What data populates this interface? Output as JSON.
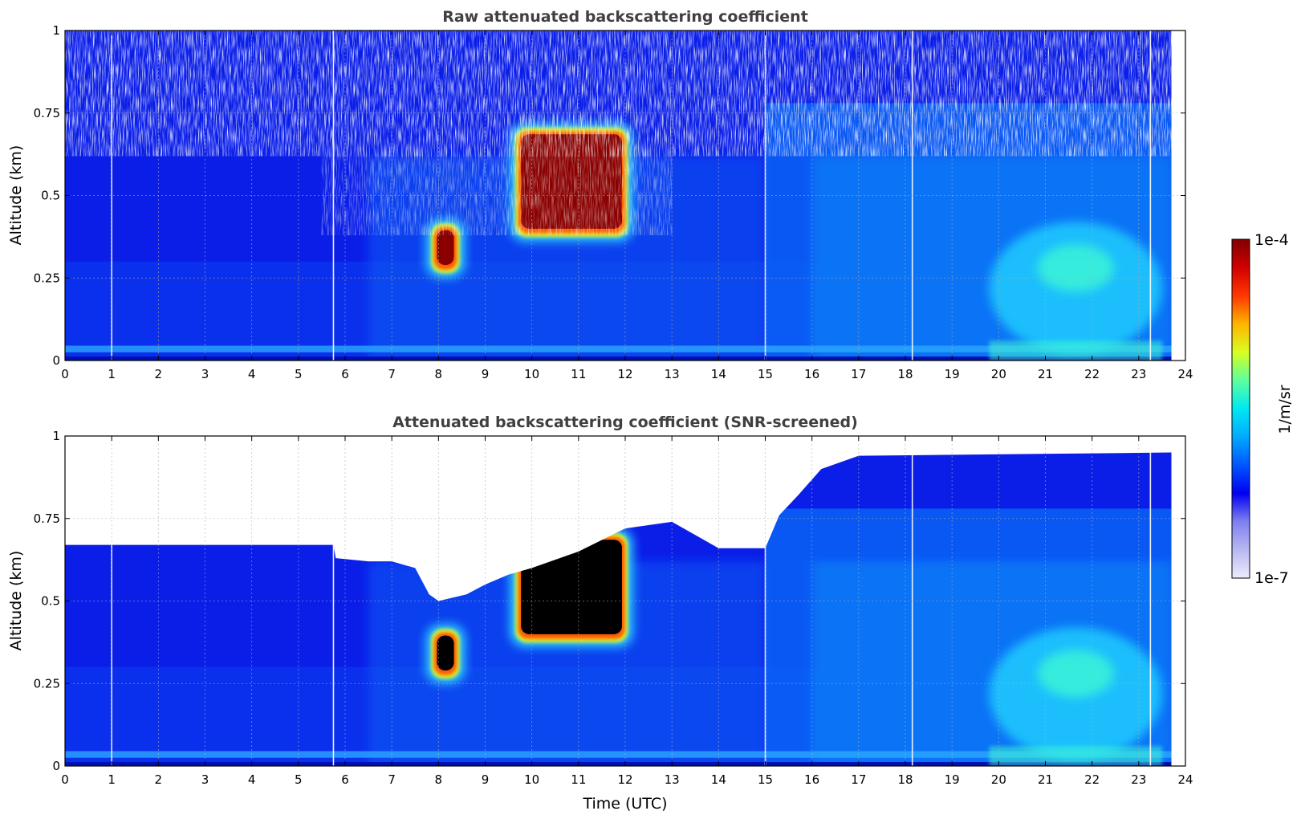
{
  "chart_data": [
    {
      "type": "heatmap",
      "title": "Raw attenuated backscattering coefficient",
      "xlabel": "",
      "ylabel": "Altitude (km)",
      "xlim": [
        0,
        24
      ],
      "ylim": [
        0,
        1
      ],
      "xticks": [
        "0",
        "1",
        "2",
        "3",
        "4",
        "5",
        "6",
        "7",
        "8",
        "9",
        "10",
        "11",
        "12",
        "13",
        "14",
        "15",
        "16",
        "17",
        "18",
        "19",
        "20",
        "21",
        "22",
        "23",
        "24"
      ],
      "yticks": [
        "0",
        "0.25",
        "0.5",
        "0.75",
        "1"
      ],
      "grid": true,
      "data_end_time": 23.7,
      "gap_times": [
        1.0,
        5.75,
        15.0,
        18.15,
        23.25
      ],
      "features": [
        {
          "kind": "cloud",
          "time_start": 7.9,
          "time_end": 8.4,
          "altitude_bottom": 0.27,
          "altitude_top": 0.41,
          "level": "high"
        },
        {
          "kind": "cloud",
          "time_start": 9.7,
          "time_end": 12.0,
          "altitude_bottom": 0.38,
          "altitude_top": 0.7,
          "level": "high"
        },
        {
          "kind": "aerosol",
          "time_start": 19.8,
          "time_end": 23.5,
          "altitude_bottom": 0.0,
          "altitude_top": 0.4,
          "level": "medium"
        }
      ]
    },
    {
      "type": "heatmap",
      "title": "Attenuated backscattering coefficient (SNR-screened)",
      "xlabel": "Time (UTC)",
      "ylabel": "Altitude (km)",
      "xlim": [
        0,
        24
      ],
      "ylim": [
        0,
        1
      ],
      "xticks": [
        "0",
        "1",
        "2",
        "3",
        "4",
        "5",
        "6",
        "7",
        "8",
        "9",
        "10",
        "11",
        "12",
        "13",
        "14",
        "15",
        "16",
        "17",
        "18",
        "19",
        "20",
        "21",
        "22",
        "23",
        "24"
      ],
      "yticks": [
        "0",
        "0.25",
        "0.5",
        "0.75",
        "1"
      ],
      "grid": true,
      "data_end_time": 23.7,
      "gap_times": [
        1.0,
        5.75,
        15.0,
        18.15,
        23.25
      ],
      "screen_top_profile": [
        [
          0,
          0.67
        ],
        [
          5.75,
          0.67
        ],
        [
          5.8,
          0.63
        ],
        [
          6.5,
          0.62
        ],
        [
          7.0,
          0.62
        ],
        [
          7.5,
          0.6
        ],
        [
          7.8,
          0.52
        ],
        [
          8.0,
          0.5
        ],
        [
          8.6,
          0.52
        ],
        [
          9.0,
          0.55
        ],
        [
          9.5,
          0.58
        ],
        [
          10.0,
          0.6
        ],
        [
          11.0,
          0.65
        ],
        [
          12.0,
          0.72
        ],
        [
          13.0,
          0.74
        ],
        [
          13.5,
          0.7
        ],
        [
          14.0,
          0.66
        ],
        [
          14.5,
          0.66
        ],
        [
          15.0,
          0.66
        ],
        [
          15.3,
          0.76
        ],
        [
          15.7,
          0.82
        ],
        [
          16.2,
          0.9
        ],
        [
          17.0,
          0.94
        ],
        [
          23.7,
          0.95
        ]
      ],
      "features": [
        {
          "kind": "cloud",
          "time_start": 7.9,
          "time_end": 8.4,
          "altitude_bottom": 0.27,
          "altitude_top": 0.41,
          "level": "saturated"
        },
        {
          "kind": "cloud",
          "time_start": 9.7,
          "time_end": 12.0,
          "altitude_bottom": 0.38,
          "altitude_top": 0.7,
          "level": "saturated"
        },
        {
          "kind": "aerosol",
          "time_start": 19.8,
          "time_end": 23.5,
          "altitude_bottom": 0.0,
          "altitude_top": 0.4,
          "level": "medium"
        }
      ]
    }
  ],
  "colorbar": {
    "label": "1/m/sr",
    "min_label": "1e-7",
    "max_label": "1e-4",
    "colors": [
      "#ececfb",
      "#b8b8f2",
      "#7f7ff0",
      "#0000f0",
      "#0055ff",
      "#00aaff",
      "#00e8f0",
      "#5cffa0",
      "#d8ff20",
      "#ffb400",
      "#ff3800",
      "#d00000",
      "#7f0000"
    ]
  }
}
